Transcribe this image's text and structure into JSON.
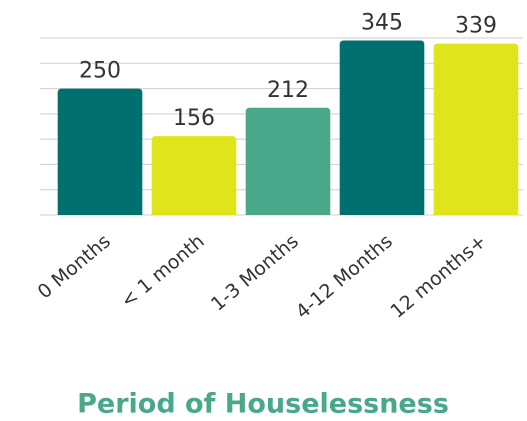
{
  "chart_data": {
    "type": "bar",
    "title": "Period of Houselessness",
    "categories": [
      "0 Months",
      "< 1 month",
      "1-3 Months",
      "4-12 Months",
      "12 months+"
    ],
    "values": [
      250,
      156,
      212,
      345,
      339
    ],
    "colors": [
      "#00706f",
      "#e0e41a",
      "#4aa88a",
      "#00706f",
      "#e0e41a"
    ],
    "ylim": [
      0,
      350
    ],
    "yticks": [
      0,
      50,
      100,
      150,
      200,
      250,
      300,
      350
    ],
    "grid": true
  }
}
